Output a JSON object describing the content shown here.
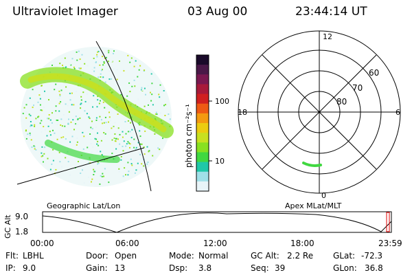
{
  "header": {
    "instrument": "Ultraviolet Imager",
    "date": "03 Aug 00",
    "time": "23:44:14 UT"
  },
  "colorbar": {
    "label": "photon cm⁻²s⁻¹",
    "ticks": [
      "100",
      "10"
    ],
    "colors_top_to_bottom": [
      "#1a0a2a",
      "#4a1848",
      "#7a1850",
      "#a81a3a",
      "#d02020",
      "#ee5a14",
      "#f49a10",
      "#eccc10",
      "#c8e020",
      "#88e020",
      "#40d840",
      "#20c8a8",
      "#a0e0e8",
      "#e8f4f8"
    ]
  },
  "geo_panel": {
    "label": "Geographic Lat/Lon"
  },
  "polar_plot": {
    "label": "Apex MLat/MLT",
    "mlt_labels": {
      "top": "12",
      "left": "18",
      "right": "6",
      "bottom": "0"
    },
    "lat_labels": [
      "80",
      "70",
      "60"
    ]
  },
  "altitude_plot": {
    "ylabel": "GC Alt",
    "yticks": [
      "9.0",
      "1.8"
    ],
    "xticks": [
      "00:00",
      "06:00",
      "12:00",
      "18:00",
      "23:59"
    ]
  },
  "info": {
    "row1": [
      {
        "key": "Flt:",
        "value": "LBHL"
      },
      {
        "key": "Door:",
        "value": "Open"
      },
      {
        "key": "Mode:",
        "value": "Normal"
      },
      {
        "key": "GC Alt:",
        "value": "2.2 Re"
      },
      {
        "key": "GLat:",
        "value": "-72.3"
      }
    ],
    "row2": [
      {
        "key": "IP:",
        "value": "9.0"
      },
      {
        "key": "Gain:",
        "value": "13"
      },
      {
        "key": "Dsp:",
        "value": "3.8"
      },
      {
        "key": "Seq:",
        "value": "39"
      },
      {
        "key": "GLon:",
        "value": "36.8"
      }
    ]
  }
}
